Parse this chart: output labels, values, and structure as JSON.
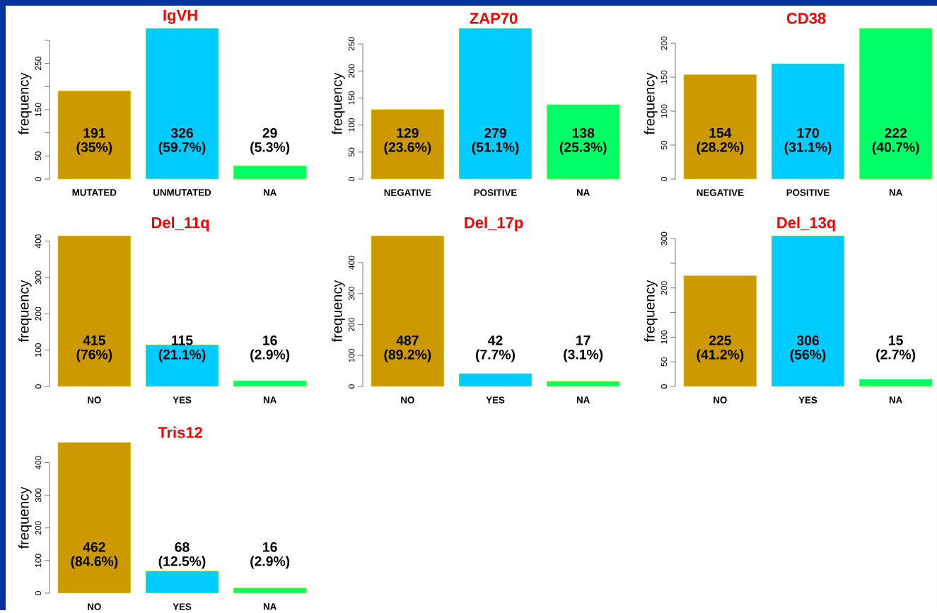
{
  "chart_data": [
    {
      "type": "bar",
      "title": "IgVH",
      "ylabel": "frequency",
      "categories": [
        "MUTATED",
        "UNMUTATED",
        "NA"
      ],
      "values": [
        191,
        326,
        29
      ],
      "colors": [
        "#cc9900",
        "#00ccff",
        "#00ff66"
      ],
      "ylim": [
        0,
        326
      ],
      "yticks": [
        0,
        50,
        {
          "value": 100,
          "label": null
        },
        150,
        {
          "value": 200,
          "label": null
        },
        250,
        {
          "value": 300,
          "label": null
        }
      ],
      "value_labels": [
        "191 (35%)",
        "326 (59.7%)",
        "29 (5.3%)"
      ]
    },
    {
      "type": "bar",
      "title": "ZAP70",
      "ylabel": "frequency",
      "categories": [
        "NEGATIVE",
        "POSITIVE",
        "NA"
      ],
      "values": [
        129,
        279,
        138
      ],
      "colors": [
        "#cc9900",
        "#00ccff",
        "#00ff66"
      ],
      "ylim": [
        0,
        279
      ],
      "yticks": [
        0,
        50,
        100,
        150,
        200,
        250
      ],
      "value_labels": [
        "129 (23.6%)",
        "279 (51.1%)",
        "138 (25.3%)"
      ]
    },
    {
      "type": "bar",
      "title": "CD38",
      "ylabel": "frequency",
      "categories": [
        "NEGATIVE",
        "POSITIVE",
        "NA"
      ],
      "values": [
        154,
        170,
        222
      ],
      "colors": [
        "#cc9900",
        "#00ccff",
        "#00ff66"
      ],
      "ylim": [
        0,
        222
      ],
      "yticks": [
        0,
        50,
        100,
        150,
        200
      ],
      "value_labels": [
        "154 (28.2%)",
        "170 (31.1%)",
        "222 (40.7%)"
      ]
    },
    {
      "type": "bar",
      "title": "Del_11q",
      "ylabel": "frequency",
      "categories": [
        "NO",
        "YES",
        "NA"
      ],
      "values": [
        415,
        115,
        16
      ],
      "colors": [
        "#cc9900",
        "#00ccff",
        "#00ff66"
      ],
      "ylim": [
        0,
        415
      ],
      "yticks": [
        0,
        100,
        200,
        300,
        400
      ],
      "value_labels": [
        "415 (76%)",
        "115 (21.1%)",
        "16 (2.9%)"
      ]
    },
    {
      "type": "bar",
      "title": "Del_17p",
      "ylabel": "frequency",
      "categories": [
        "NO",
        "YES",
        "NA"
      ],
      "values": [
        487,
        42,
        17
      ],
      "colors": [
        "#cc9900",
        "#00ccff",
        "#00ff66"
      ],
      "ylim": [
        0,
        487
      ],
      "yticks": [
        0,
        100,
        200,
        300,
        400
      ],
      "value_labels": [
        "487 (89.2%)",
        "42 (7.7%)",
        "17 (3.1%)"
      ]
    },
    {
      "type": "bar",
      "title": "Del_13q",
      "ylabel": "frequency",
      "categories": [
        "NO",
        "YES",
        "NA"
      ],
      "values": [
        225,
        306,
        15
      ],
      "colors": [
        "#cc9900",
        "#00ccff",
        "#00ff66"
      ],
      "ylim": [
        0,
        306
      ],
      "yticks": [
        0,
        50,
        100,
        {
          "value": 150,
          "label": null
        },
        200,
        {
          "value": 250,
          "label": null
        },
        300
      ],
      "value_labels": [
        "225 (41.2%)",
        "306 (56%)",
        "15 (2.7%)"
      ]
    },
    {
      "type": "bar",
      "title": "Tris12",
      "ylabel": "frequency",
      "categories": [
        "NO",
        "YES",
        "NA"
      ],
      "values": [
        462,
        68,
        16
      ],
      "colors": [
        "#cc9900",
        "#00ccff",
        "#00ff66"
      ],
      "ylim": [
        0,
        462
      ],
      "yticks": [
        0,
        100,
        200,
        300,
        400
      ],
      "value_labels": [
        "462 (84.6%)",
        "68 (12.5%)",
        "16 (2.9%)"
      ]
    }
  ]
}
